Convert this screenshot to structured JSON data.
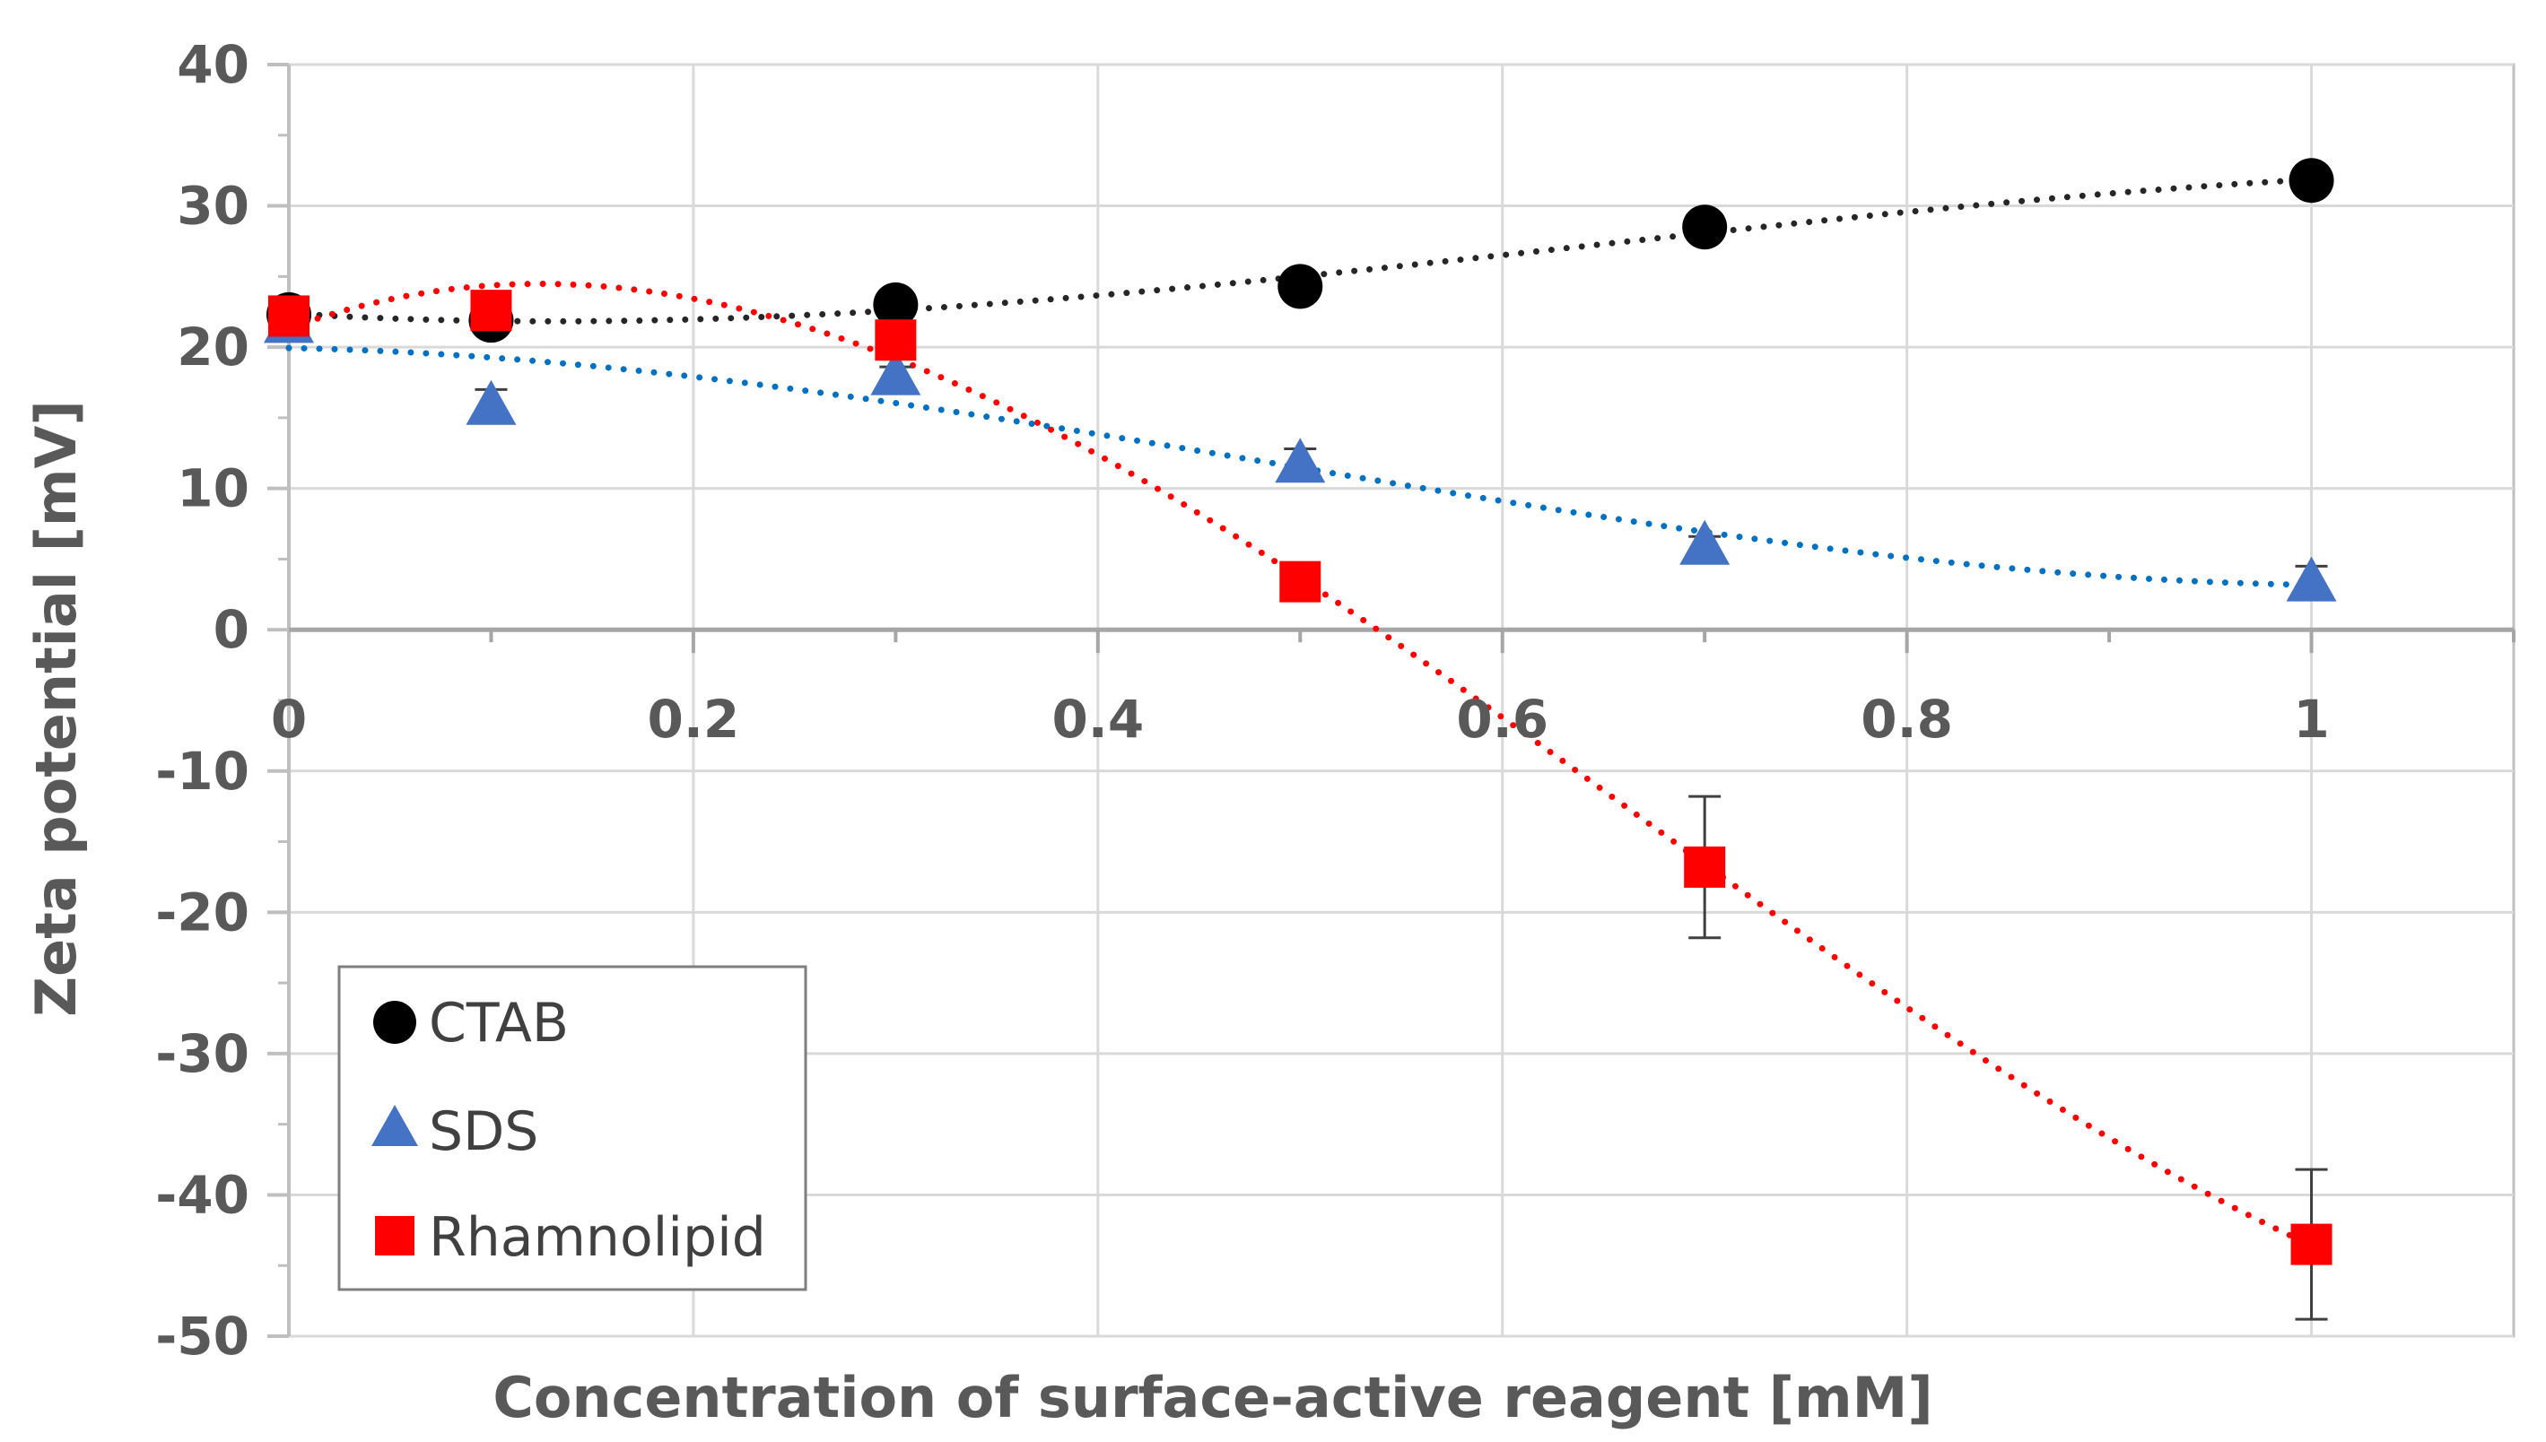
{
  "chart_data": {
    "type": "scatter",
    "title": "",
    "xlabel": "Concentration of surface-active reagent  [mM]",
    "ylabel": "Zeta potential [mV]",
    "xlim": [
      0,
      1.1
    ],
    "ylim": [
      -50,
      40
    ],
    "x_ticks": [
      0,
      0.2,
      0.4,
      0.6,
      0.8,
      1
    ],
    "x_tick_labels": [
      "0",
      "0.2",
      "0.4",
      "0.6",
      "0.8",
      "1"
    ],
    "y_ticks": [
      40,
      30,
      20,
      10,
      0,
      -10,
      -20,
      -30,
      -40,
      -50
    ],
    "y_tick_labels": [
      "40",
      "30",
      "20",
      "10",
      "0",
      "-10",
      "-20",
      "-30",
      "-40",
      "-50"
    ],
    "grid": true,
    "legend_position": "bottom-left",
    "series": [
      {
        "name": "CTAB",
        "marker": "circle",
        "color": "#000000",
        "trend_color": "#262626",
        "x": [
          0,
          0.1,
          0.3,
          0.5,
          0.7,
          1.0
        ],
        "y": [
          22.3,
          21.9,
          23.0,
          24.3,
          28.5,
          31.8
        ],
        "err": [
          0.4,
          0.4,
          0.5,
          0.5,
          0.6,
          0.6
        ]
      },
      {
        "name": "SDS",
        "marker": "triangle",
        "color": "#4472C4",
        "trend_color": "#0070C0",
        "x": [
          0,
          0.1,
          0.3,
          0.5,
          0.7,
          1.0
        ],
        "y": [
          21.7,
          15.9,
          18.0,
          11.8,
          6.0,
          3.4
        ],
        "err": [
          0.5,
          1.1,
          0.6,
          1.0,
          0.6,
          1.1
        ]
      },
      {
        "name": "Rhamnolipid",
        "marker": "square",
        "color": "#FF0000",
        "trend_color": "#FF0000",
        "x": [
          0,
          0.1,
          0.3,
          0.5,
          0.7,
          1.0
        ],
        "y": [
          22.2,
          22.6,
          20.5,
          3.4,
          -16.8,
          -43.5
        ],
        "err": [
          0.4,
          0.5,
          0.6,
          0.8,
          5.0,
          5.3
        ]
      }
    ]
  }
}
